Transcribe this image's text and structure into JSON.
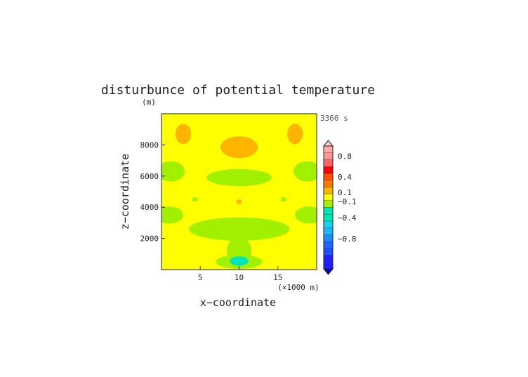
{
  "chart_data": {
    "type": "heatmap",
    "title": "disturbunce of potential temperature",
    "time_label": "3360 s",
    "xlabel": "x−coordinate",
    "ylabel": "z−coordinate",
    "x_unit": "(×1000 m)",
    "y_unit": "(m)",
    "xlim": [
      0,
      20
    ],
    "ylim": [
      0,
      10000
    ],
    "x_ticks": [
      5,
      10,
      15
    ],
    "y_ticks": [
      2000,
      4000,
      6000,
      8000
    ],
    "x_tick_labels": [
      "5",
      "10",
      "15"
    ],
    "y_tick_labels": [
      "2000",
      "4000",
      "6000",
      "8000"
    ],
    "background_level": "-0.1 to 0.1 (yellow)",
    "regions": [
      {
        "level": "0.1",
        "color": "#ffb400",
        "cx": 2.8,
        "cy": 8700,
        "rx": 1.0,
        "ry": 650
      },
      {
        "level": "0.1",
        "color": "#ffb400",
        "cx": 17.2,
        "cy": 8700,
        "rx": 1.0,
        "ry": 650
      },
      {
        "level": "0.1",
        "color": "#ffb400",
        "cx": 10.0,
        "cy": 7850,
        "rx": 2.4,
        "ry": 700
      },
      {
        "level": "0.1",
        "color": "#ffb400",
        "cx": 10.0,
        "cy": 4350,
        "rx": 0.35,
        "ry": 160
      },
      {
        "level": "-0.1",
        "color": "#a0f000",
        "cx": 1.2,
        "cy": 6300,
        "rx": 1.8,
        "ry": 650
      },
      {
        "level": "-0.1",
        "color": "#a0f000",
        "cx": 18.8,
        "cy": 6300,
        "rx": 1.8,
        "ry": 650
      },
      {
        "level": "-0.1",
        "color": "#a0f000",
        "cx": 10.0,
        "cy": 5900,
        "rx": 4.2,
        "ry": 550
      },
      {
        "level": "-0.1",
        "color": "#a0f000",
        "cx": 4.3,
        "cy": 4500,
        "rx": 0.35,
        "ry": 150
      },
      {
        "level": "-0.1",
        "color": "#a0f000",
        "cx": 15.7,
        "cy": 4500,
        "rx": 0.35,
        "ry": 150
      },
      {
        "level": "-0.1",
        "color": "#a0f000",
        "cx": 1.0,
        "cy": 3500,
        "rx": 1.8,
        "ry": 550
      },
      {
        "level": "-0.1",
        "color": "#a0f000",
        "cx": 19.0,
        "cy": 3500,
        "rx": 1.8,
        "ry": 550
      },
      {
        "level": "-0.1",
        "color": "#a0f000",
        "cx": 10.0,
        "cy": 2600,
        "rx": 6.5,
        "ry": 750
      },
      {
        "level": "-0.1",
        "color": "#a0f000",
        "cx": 10.0,
        "cy": 1200,
        "rx": 1.6,
        "ry": 900
      },
      {
        "level": "-0.1",
        "color": "#a0f000",
        "cx": 10.0,
        "cy": 500,
        "rx": 3.0,
        "ry": 450
      },
      {
        "level": "-0.4",
        "color": "#00e6b4",
        "cx": 10.0,
        "cy": 550,
        "rx": 1.2,
        "ry": 300
      }
    ],
    "colorbar": {
      "levels": [
        {
          "color": "#1e1eff"
        },
        {
          "color": "#1e1eff"
        },
        {
          "color": "#1e50ff"
        },
        {
          "color": "#1e64ff"
        },
        {
          "color": "#1e8cff"
        },
        {
          "color": "#1eb4ff"
        },
        {
          "color": "#1ed2f0"
        },
        {
          "color": "#00e6b4"
        },
        {
          "color": "#00e6b4"
        },
        {
          "color": "#a0f000"
        },
        {
          "color": "#ffff00"
        },
        {
          "color": "#ffb400"
        },
        {
          "color": "#ff7800"
        },
        {
          "color": "#ff5000"
        },
        {
          "color": "#ff0000"
        },
        {
          "color": "#ff6464"
        },
        {
          "color": "#ff9696"
        },
        {
          "color": "#ffaaaa"
        }
      ],
      "over_color": "#ffc8c8",
      "under_color": "#0000c8",
      "labels": [
        {
          "text": "0.8",
          "pos": 16.5
        },
        {
          "text": "0.4",
          "pos": 13.5
        },
        {
          "text": "0.1",
          "pos": 11.2
        },
        {
          "text": "−0.1",
          "pos": 9.9
        },
        {
          "text": "−0.4",
          "pos": 7.5
        },
        {
          "text": "−0.8",
          "pos": 4.4
        }
      ]
    }
  }
}
